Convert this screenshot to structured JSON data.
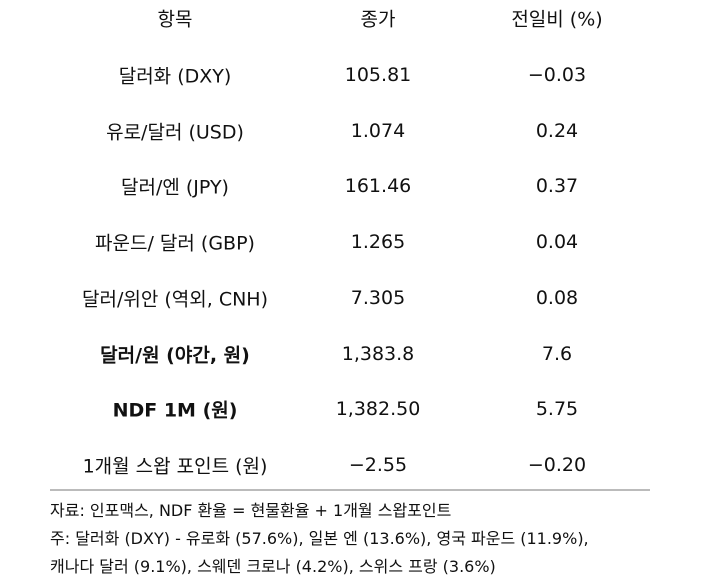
{
  "table": {
    "header": [
      "항목",
      "종가",
      "전일비 (%)"
    ],
    "rows": [
      [
        "달러화 (DXY)",
        "105.81",
        "−0.03"
      ],
      [
        "유로/달러 (USD)",
        "1.074",
        "0.24"
      ],
      [
        "달러/엔 (JPY)",
        "161.46",
        "0.37"
      ],
      [
        "파운드/ 달러 (GBP)",
        "1.265",
        "0.04"
      ],
      [
        "달러/위안 (역외, CNH)",
        "7.305",
        "0.08"
      ],
      [
        "달러/원 (야간, 원)",
        "1,383.8",
        "7.6"
      ],
      [
        "NDF 1M (원)",
        "1,382.50",
        "5.75"
      ],
      [
        "1개월 스왑 포인트 (원)",
        "−2.55",
        "−0.20"
      ]
    ]
  },
  "notes": [
    "자료: 인포맥스, NDF 환율 = 현물환율 + 1개월 스왑포인트",
    "주: 달러화 (DXY) - 유로화 (57.6%), 일본 엔 (13.6%), 영국 파운드 (11.9%),",
    "캐나다 달러 (9.1%), 스웨덴 크로나 (4.2%), 스위스 프랑 (3.6%)"
  ]
}
